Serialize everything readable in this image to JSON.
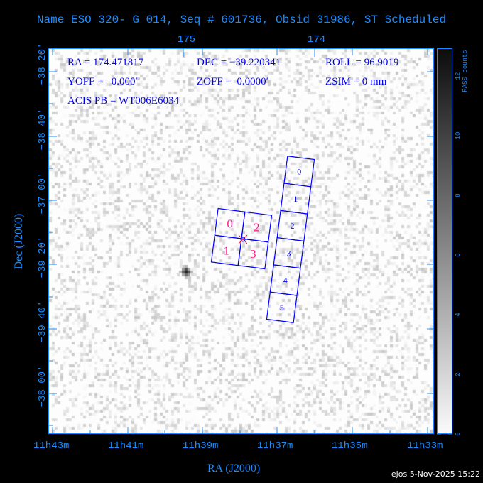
{
  "title": "Name ESO 320- G 014, Seq # 601736, Obsid 31986, ST Scheduled",
  "info": {
    "ra": "RA = 174.471817",
    "dec": "DEC = −39.220341",
    "roll": "ROLL = 96.9019",
    "yoff": "YOFF =   0.000′",
    "zoff": "ZOFF =  0.0000′",
    "zsim": "ZSIM = 0 mm",
    "acis_pb": "ACIS PB = WT006E6034"
  },
  "top_axis": {
    "ticks": [
      "175",
      "174"
    ]
  },
  "x_axis": {
    "label": "RA (J2000)",
    "ticks": [
      "11h43m",
      "11h41m",
      "11h39m",
      "11h37m",
      "11h35m",
      "11h33m"
    ]
  },
  "y_axis": {
    "label": "Dec (J2000)",
    "ticks": [
      "−38 20′",
      "−38 40′",
      "−37 00′",
      "−39 20′",
      "−39 40′",
      "−38 00′"
    ]
  },
  "colorbar": {
    "label": "RASS counts",
    "ticks": [
      "0",
      "2",
      "4",
      "6",
      "8",
      "10",
      "12"
    ],
    "range": [
      0,
      12.5
    ]
  },
  "acis_i": {
    "chips": [
      "0",
      "2",
      "1",
      "3"
    ],
    "label_color": "#ff1a8c"
  },
  "acis_s": {
    "chips": [
      "0",
      "1",
      "2",
      "3",
      "4",
      "5"
    ],
    "label_color": "#0000ee"
  },
  "chip_outline_color": "#0000ff",
  "footer": "ejos  5-Nov-2025 15:22"
}
